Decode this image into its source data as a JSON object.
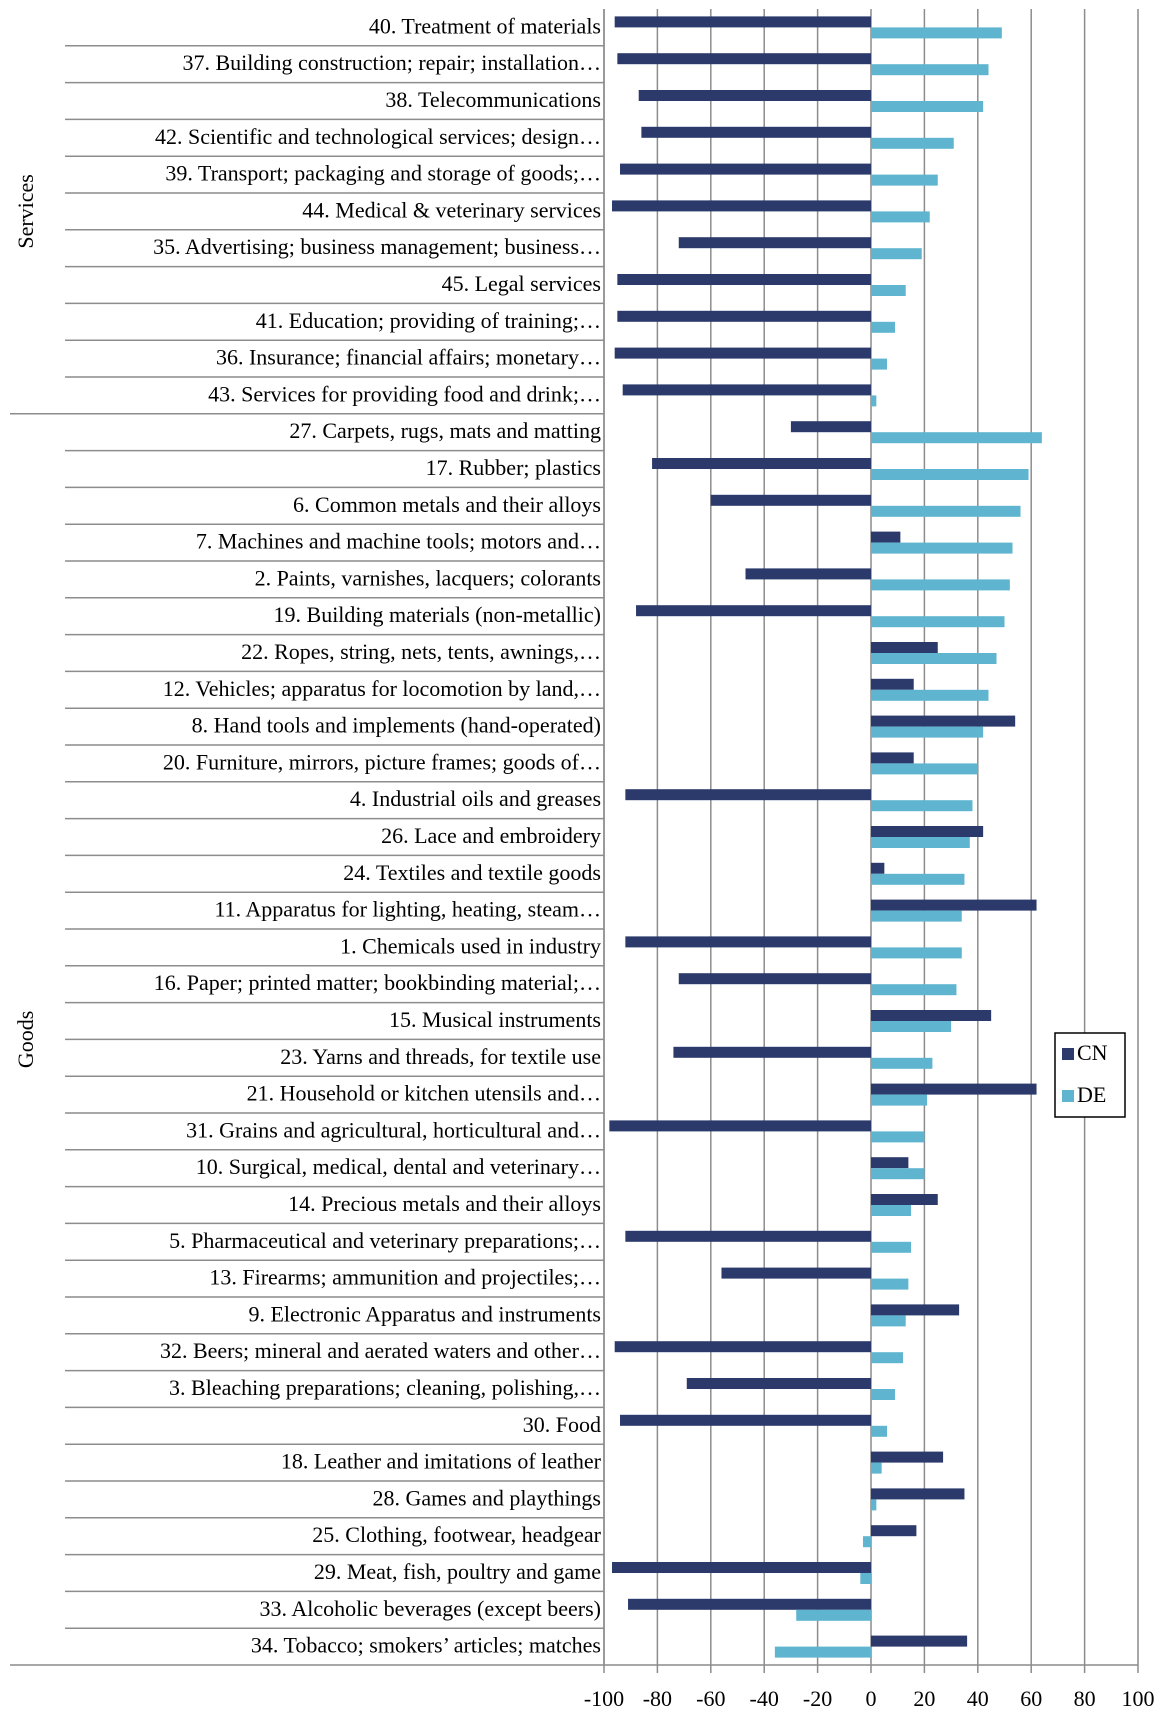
{
  "chart_data": {
    "type": "bar",
    "orientation": "horizontal",
    "groups": [
      {
        "name": "Services",
        "categories": [
          "40. Treatment of materials",
          "37. Building construction;  repair;  installation…",
          "38. Telecommunications",
          "42. Scientific and technological services; design…",
          "39. Transport; packaging and storage of goods;…",
          "44. Medical & veterinary services",
          "35. Advertising; business management; business…",
          "45. Legal services",
          "41. Education; providing of training;…",
          "36. Insurance;  financial affairs;  monetary…",
          "43. Services for providing food and drink;…"
        ]
      },
      {
        "name": "Goods",
        "categories": [
          "27. Carpets, rugs, mats and matting",
          "17. Rubber; plastics",
          "6. Common metals and their alloys",
          "7. Machines and machine tools; motors and…",
          "2. Paints, varnishes, lacquers; colorants",
          "19. Building materials (non-metallic)",
          "22. Ropes, string, nets, tents, awnings,…",
          "12. Vehicles; apparatus for locomotion by land,…",
          "8. Hand tools and implements (hand-operated)",
          "20. Furniture, mirrors, picture frames; goods of…",
          "4. Industrial oils and greases",
          "26. Lace and embroidery",
          "24. Textiles and textile goods",
          "11. Apparatus for lighting, heating, steam…",
          "1. Chemicals used in industry",
          "16. Paper; printed matter; bookbinding material;…",
          "15. Musical instruments",
          "23. Yarns and threads, for textile use",
          "21. Household or kitchen utensils and…",
          "31. Grains and agricultural, horticultural and…",
          "10. Surgical, medical, dental and veterinary…",
          "14. Precious metals and their alloys",
          "5. Pharmaceutical and veterinary preparations;…",
          "13. Firearms; ammunition and projectiles;…",
          "9. Electronic Apparatus and instruments",
          "32. Beers; mineral and aerated waters and other…",
          "3. Bleaching preparations; cleaning, polishing,…",
          "30. Food",
          "18. Leather and imitations of leather",
          "28. Games and playthings",
          "25. Clothing, footwear, headgear",
          "29. Meat, fish, poultry and game",
          "33. Alcoholic beverages (except beers)",
          "34. Tobacco; smokers’ articles; matches"
        ]
      }
    ],
    "series": [
      {
        "name": "CN",
        "color": "#2b3a6b",
        "values": [
          -96,
          -95,
          -87,
          -86,
          -94,
          -97,
          -72,
          -95,
          -95,
          -96,
          -93,
          -30,
          -82,
          -60,
          11,
          -47,
          -88,
          25,
          16,
          54,
          16,
          -92,
          42,
          5,
          62,
          -92,
          -72,
          45,
          -74,
          62,
          -98,
          14,
          25,
          -92,
          -56,
          33,
          -96,
          -69,
          -94,
          27,
          35,
          17,
          -97,
          -91,
          36
        ]
      },
      {
        "name": "DE",
        "color": "#5fb5cf",
        "values": [
          49,
          44,
          42,
          31,
          25,
          22,
          19,
          13,
          9,
          6,
          2,
          64,
          59,
          56,
          53,
          52,
          50,
          47,
          44,
          42,
          40,
          38,
          37,
          35,
          34,
          34,
          32,
          30,
          23,
          21,
          20,
          20,
          15,
          15,
          14,
          13,
          12,
          9,
          6,
          4,
          2,
          -3,
          -4,
          -28,
          -36
        ]
      }
    ],
    "xlim": [
      -100,
      100
    ],
    "xticks": [
      -100,
      -80,
      -60,
      -40,
      -20,
      0,
      20,
      40,
      60,
      80,
      100
    ],
    "grid": true,
    "legend": "right"
  }
}
